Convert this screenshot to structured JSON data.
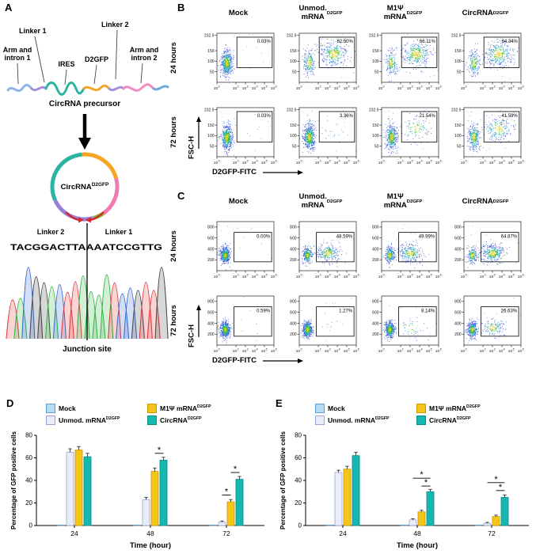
{
  "panelA": {
    "label": "A",
    "linker1_top": "Linker 1",
    "linker2_top": "Linker 2",
    "arm1_l1": "Arm and",
    "arm1_l2": "intron 1",
    "ires": "IRES",
    "d2gfp": "D2GFP",
    "arm2_l1": "Arm and",
    "arm2_l2": "intron 2",
    "precursor": "CircRNA precursor",
    "circ_name": "CircRNA",
    "circ_sup": "D2GFP",
    "linker2_circle": "Linker 2",
    "linker1_circle": "Linker 1",
    "junction_sequence": "TACGGACTTAAAATCCGTTG",
    "junction_label": "Junction site"
  },
  "panelB": {
    "label": "B",
    "col_titles": [
      {
        "l1": "Mock"
      },
      {
        "l1": "Unmod.",
        "l2": "mRNA",
        "sup": "D2GFP"
      },
      {
        "l1": "M1Ψ",
        "l2": "mRNA",
        "sup": "D2GFP"
      },
      {
        "l1": "CircRNA",
        "sup": "D2GFP"
      }
    ],
    "row_labels": [
      "24 hours",
      "72 hours"
    ],
    "gate_percentages": [
      [
        "0.03%",
        "62.50%",
        "66.11%",
        "64.34%"
      ],
      [
        "0.03%",
        "3.36%",
        "21.54%",
        "41.59%"
      ]
    ],
    "y_ticks": [
      "232.9",
      "150",
      "100",
      "50"
    ],
    "x_tick_exponents": [
      "0",
      "2",
      "3",
      "4",
      "5",
      "6"
    ],
    "y_axis": "FSC-H",
    "x_axis": "D2GFP-FITC"
  },
  "panelC": {
    "label": "C",
    "col_titles": [
      {
        "l1": "Mock"
      },
      {
        "l1": "Unmod.",
        "l2": "mRNA",
        "sup": "D2GFP"
      },
      {
        "l1": "M1Ψ",
        "l2": "mRNA",
        "sup": "D2GFP"
      },
      {
        "l1": "CircRNA",
        "sup": "D2GFP"
      }
    ],
    "row_labels": [
      "24 hours",
      "72 hours"
    ],
    "gate_percentages": [
      [
        "0.00%",
        "48.59%",
        "49.99%",
        "64.87%"
      ],
      [
        "0.59%",
        "1.27%",
        "8.14%",
        "26.63%"
      ]
    ],
    "y_ticks": [
      "800",
      "600",
      "400",
      "200"
    ],
    "x_tick_exponents": [
      "0",
      "2",
      "3",
      "4",
      "5",
      "6"
    ],
    "y_axis": "FSC-H",
    "x_axis": "D2GFP-FITC"
  },
  "panelD": {
    "label": "D"
  },
  "panelE": {
    "label": "E"
  },
  "chart_data": [
    {
      "id": "D",
      "type": "bar",
      "categories": [
        "24",
        "48",
        "72"
      ],
      "series": [
        {
          "name": "Mock",
          "sup": "",
          "color": "#b9dbf4",
          "edge": "#5e9dd0",
          "values": [
            0.4,
            0.4,
            0.4
          ],
          "err": [
            0.2,
            0.2,
            0.2
          ]
        },
        {
          "name": "Unmod. mRNA",
          "sup": "D2GFP",
          "color": "#e9ecfb",
          "edge": "#9aa6d6",
          "values": [
            65,
            23,
            3
          ],
          "err": [
            3,
            2,
            1
          ]
        },
        {
          "name": "M1Ψ mRNA",
          "sup": "D2GFP",
          "color": "#f6c51a",
          "edge": "#c79b00",
          "values": [
            67,
            48,
            21
          ],
          "err": [
            3,
            3,
            2
          ]
        },
        {
          "name": "CircRNA",
          "sup": "D2GFP",
          "color": "#14b8b1",
          "edge": "#0b8c87",
          "values": [
            61,
            58,
            41
          ],
          "err": [
            3,
            2.5,
            2.5
          ]
        }
      ],
      "ylabel": "Percentage of GFP positive cells",
      "xlabel": "Time (hour)",
      "ylim": [
        0,
        80
      ],
      "yticks": [
        0,
        20,
        40,
        60,
        80
      ],
      "legend_order": [
        0,
        2,
        1,
        3
      ],
      "legend_position": "top",
      "sig": [
        {
          "cat": 1,
          "bars": [
            2,
            3
          ],
          "y": 64,
          "label": "*"
        },
        {
          "cat": 2,
          "bars": [
            2,
            3
          ],
          "y": 47,
          "label": "*"
        },
        {
          "cat": 2,
          "bars": [
            1,
            2
          ],
          "y": 27,
          "label": "*"
        }
      ]
    },
    {
      "id": "E",
      "type": "bar",
      "categories": [
        "24",
        "48",
        "72"
      ],
      "series": [
        {
          "name": "Mock",
          "sup": "",
          "color": "#b9dbf4",
          "edge": "#5e9dd0",
          "values": [
            0.3,
            0.3,
            0.3
          ],
          "err": [
            0.2,
            0.2,
            0.2
          ]
        },
        {
          "name": "Unmod. mRNA",
          "sup": "D2GFP",
          "color": "#e9ecfb",
          "edge": "#9aa6d6",
          "values": [
            47,
            5,
            2
          ],
          "err": [
            2,
            1,
            0.8
          ]
        },
        {
          "name": "M1Ψ mRNA",
          "sup": "D2GFP",
          "color": "#f6c51a",
          "edge": "#c79b00",
          "values": [
            50,
            12,
            8
          ],
          "err": [
            2.5,
            1.5,
            1.2
          ]
        },
        {
          "name": "CircRNA",
          "sup": "D2GFP",
          "color": "#14b8b1",
          "edge": "#0b8c87",
          "values": [
            62,
            30,
            25
          ],
          "err": [
            3,
            2,
            2
          ]
        }
      ],
      "ylabel": "Percentage of GFP positive cells",
      "xlabel": "Time (hour)",
      "ylim": [
        0,
        80
      ],
      "yticks": [
        0,
        20,
        40,
        60,
        80
      ],
      "legend_order": [
        0,
        2,
        1,
        3
      ],
      "legend_position": "top",
      "sig": [
        {
          "cat": 1,
          "bars": [
            1,
            3
          ],
          "y": 42,
          "label": "*"
        },
        {
          "cat": 1,
          "bars": [
            2,
            3
          ],
          "y": 35,
          "label": "*"
        },
        {
          "cat": 2,
          "bars": [
            1,
            3
          ],
          "y": 38,
          "label": "*"
        },
        {
          "cat": 2,
          "bars": [
            2,
            3
          ],
          "y": 31,
          "label": "*"
        }
      ]
    }
  ]
}
